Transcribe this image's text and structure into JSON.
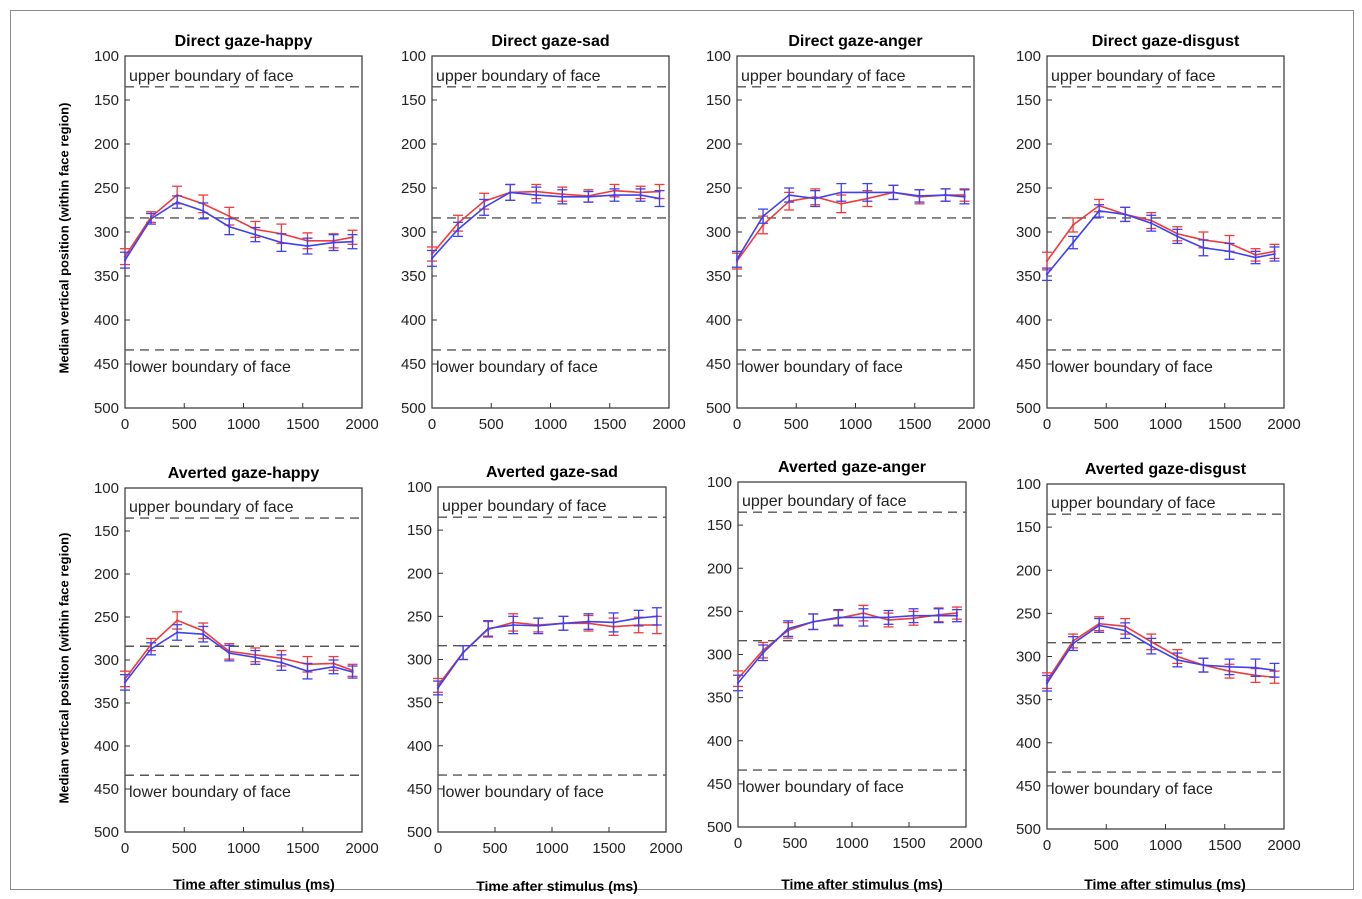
{
  "figure": {
    "y_axis_label": "Median vertical position (within face region)",
    "x_axis_label": "Time after stimulus (ms)",
    "upper_boundary_label": "upper boundary of face",
    "lower_boundary_label": "lower boundary of face",
    "colors": {
      "red": "#ee3b3b",
      "blue": "#4040ee",
      "boundary": "#555555",
      "axis": "#333333"
    }
  },
  "chart_data": [
    {
      "type": "line",
      "title": "Direct gaze-happy",
      "x": [
        0,
        220,
        440,
        660,
        880,
        1100,
        1320,
        1540,
        1760,
        1920
      ],
      "xlim": [
        0,
        2000
      ],
      "xticks": [
        0,
        500,
        1000,
        1500,
        2000
      ],
      "ylim": [
        100,
        500
      ],
      "y_reversed": true,
      "yticks": [
        100,
        150,
        200,
        250,
        300,
        350,
        400,
        450,
        500
      ],
      "reference_lines": [
        {
          "y": 135,
          "label": "upper boundary of face"
        },
        {
          "y": 284,
          "label": ""
        },
        {
          "y": 434,
          "label": "lower boundary of face"
        }
      ],
      "series": [
        {
          "color": "#ee3b3b",
          "values": [
            328,
            283,
            258,
            268,
            282,
            297,
            302,
            310,
            310,
            306
          ],
          "errors": [
            9,
            6,
            10,
            10,
            10,
            9,
            11,
            9,
            8,
            8
          ]
        },
        {
          "color": "#4040ee",
          "values": [
            332,
            285,
            266,
            276,
            294,
            303,
            312,
            316,
            312,
            311
          ],
          "errors": [
            9,
            6,
            7,
            9,
            9,
            8,
            10,
            9,
            9,
            8
          ]
        }
      ]
    },
    {
      "type": "line",
      "title": "Direct gaze-sad",
      "x": [
        0,
        220,
        440,
        660,
        880,
        1100,
        1320,
        1540,
        1760,
        1920
      ],
      "xlim": [
        0,
        2000
      ],
      "xticks": [
        0,
        500,
        1000,
        1500,
        2000
      ],
      "ylim": [
        100,
        500
      ],
      "y_reversed": true,
      "yticks": [
        100,
        150,
        200,
        250,
        300,
        350,
        400,
        450,
        500
      ],
      "reference_lines": [
        {
          "y": 135,
          "label": "upper boundary of face"
        },
        {
          "y": 284,
          "label": ""
        },
        {
          "y": 434,
          "label": "lower boundary of face"
        }
      ],
      "series": [
        {
          "color": "#ee3b3b",
          "values": [
            325,
            290,
            265,
            255,
            254,
            257,
            259,
            253,
            255,
            254
          ],
          "errors": [
            8,
            9,
            9,
            9,
            8,
            8,
            7,
            7,
            7,
            8
          ]
        },
        {
          "color": "#4040ee",
          "values": [
            330,
            297,
            272,
            255,
            258,
            260,
            260,
            258,
            258,
            262
          ],
          "errors": [
            9,
            8,
            9,
            9,
            9,
            8,
            6,
            7,
            7,
            9
          ]
        }
      ]
    },
    {
      "type": "line",
      "title": "Direct gaze-anger",
      "x": [
        0,
        220,
        440,
        660,
        880,
        1100,
        1320,
        1540,
        1760,
        1920
      ],
      "xlim": [
        0,
        2000
      ],
      "xticks": [
        0,
        500,
        1000,
        1500,
        2000
      ],
      "ylim": [
        100,
        500
      ],
      "y_reversed": true,
      "yticks": [
        100,
        150,
        200,
        250,
        300,
        350,
        400,
        450,
        500
      ],
      "reference_lines": [
        {
          "y": 135,
          "label": "upper boundary of face"
        },
        {
          "y": 284,
          "label": ""
        },
        {
          "y": 434,
          "label": "lower boundary of face"
        }
      ],
      "series": [
        {
          "color": "#ee3b3b",
          "values": [
            333,
            292,
            265,
            260,
            268,
            262,
            255,
            260,
            258,
            258
          ],
          "errors": [
            9,
            10,
            10,
            9,
            10,
            9,
            8,
            8,
            7,
            7
          ]
        },
        {
          "color": "#4040ee",
          "values": [
            331,
            282,
            258,
            262,
            255,
            255,
            255,
            259,
            258,
            260
          ],
          "errors": [
            9,
            8,
            8,
            9,
            10,
            10,
            8,
            7,
            7,
            8
          ]
        }
      ]
    },
    {
      "type": "line",
      "title": "Direct gaze-disgust",
      "x": [
        0,
        220,
        440,
        660,
        880,
        1100,
        1320,
        1540,
        1760,
        1920
      ],
      "xlim": [
        0,
        2000
      ],
      "xticks": [
        0,
        500,
        1000,
        1500,
        2000
      ],
      "ylim": [
        100,
        500
      ],
      "y_reversed": true,
      "yticks": [
        100,
        150,
        200,
        250,
        300,
        350,
        400,
        450,
        500
      ],
      "reference_lines": [
        {
          "y": 135,
          "label": "upper boundary of face"
        },
        {
          "y": 284,
          "label": ""
        },
        {
          "y": 434,
          "label": "lower boundary of face"
        }
      ],
      "series": [
        {
          "color": "#ee3b3b",
          "values": [
            333,
            292,
            270,
            280,
            287,
            302,
            309,
            313,
            326,
            322
          ],
          "errors": [
            10,
            8,
            7,
            8,
            9,
            8,
            9,
            9,
            7,
            8
          ]
        },
        {
          "color": "#4040ee",
          "values": [
            348,
            312,
            276,
            280,
            290,
            305,
            318,
            322,
            329,
            325
          ],
          "errors": [
            7,
            7,
            7,
            8,
            9,
            8,
            9,
            9,
            7,
            8
          ]
        }
      ]
    },
    {
      "type": "line",
      "title": "Averted gaze-happy",
      "x": [
        0,
        220,
        440,
        660,
        880,
        1100,
        1320,
        1540,
        1760,
        1920
      ],
      "xlim": [
        0,
        2000
      ],
      "xticks": [
        0,
        500,
        1000,
        1500,
        2000
      ],
      "ylim": [
        100,
        500
      ],
      "y_reversed": true,
      "yticks": [
        100,
        150,
        200,
        250,
        300,
        350,
        400,
        450,
        500
      ],
      "reference_lines": [
        {
          "y": 135,
          "label": "upper boundary of face"
        },
        {
          "y": 284,
          "label": ""
        },
        {
          "y": 434,
          "label": "lower boundary of face"
        }
      ],
      "series": [
        {
          "color": "#ee3b3b",
          "values": [
            322,
            282,
            254,
            266,
            290,
            294,
            298,
            305,
            304,
            312
          ],
          "errors": [
            9,
            7,
            10,
            9,
            9,
            8,
            9,
            9,
            8,
            7
          ]
        },
        {
          "color": "#4040ee",
          "values": [
            326,
            287,
            268,
            270,
            292,
            297,
            303,
            313,
            308,
            314
          ],
          "errors": [
            9,
            7,
            9,
            9,
            9,
            8,
            9,
            9,
            8,
            7
          ]
        }
      ]
    },
    {
      "type": "line",
      "title": "Averted gaze-sad",
      "x": [
        0,
        220,
        440,
        660,
        880,
        1100,
        1320,
        1540,
        1760,
        1920
      ],
      "xlim": [
        0,
        2000
      ],
      "xticks": [
        0,
        500,
        1000,
        1500,
        2000
      ],
      "ylim": [
        100,
        500
      ],
      "y_reversed": true,
      "yticks": [
        100,
        150,
        200,
        250,
        300,
        350,
        400,
        450,
        500
      ],
      "reference_lines": [
        {
          "y": 135,
          "label": "upper boundary of face"
        },
        {
          "y": 284,
          "label": ""
        },
        {
          "y": 434,
          "label": "lower boundary of face"
        }
      ],
      "series": [
        {
          "color": "#ee3b3b",
          "values": [
            330,
            292,
            265,
            257,
            260,
            258,
            258,
            262,
            260,
            260
          ],
          "errors": [
            8,
            8,
            9,
            10,
            8,
            8,
            9,
            10,
            9,
            10
          ]
        },
        {
          "color": "#4040ee",
          "values": [
            333,
            292,
            264,
            260,
            261,
            258,
            256,
            257,
            252,
            250
          ],
          "errors": [
            8,
            8,
            9,
            10,
            9,
            8,
            9,
            11,
            9,
            10
          ]
        }
      ]
    },
    {
      "type": "line",
      "title": "Averted gaze-anger",
      "x": [
        0,
        220,
        440,
        660,
        880,
        1100,
        1320,
        1540,
        1760,
        1920
      ],
      "xlim": [
        0,
        2000
      ],
      "xticks": [
        0,
        500,
        1000,
        1500,
        2000
      ],
      "ylim": [
        100,
        500
      ],
      "y_reversed": true,
      "yticks": [
        100,
        150,
        200,
        250,
        300,
        350,
        400,
        450,
        500
      ],
      "reference_lines": [
        {
          "y": 135,
          "label": "upper boundary of face"
        },
        {
          "y": 284,
          "label": ""
        },
        {
          "y": 434,
          "label": "lower boundary of face"
        }
      ],
      "series": [
        {
          "color": "#ee3b3b",
          "values": [
            328,
            295,
            272,
            262,
            258,
            252,
            260,
            258,
            254,
            252
          ],
          "errors": [
            9,
            9,
            9,
            9,
            9,
            9,
            8,
            8,
            8,
            7
          ]
        },
        {
          "color": "#4040ee",
          "values": [
            333,
            298,
            270,
            262,
            257,
            257,
            257,
            255,
            255,
            255
          ],
          "errors": [
            9,
            9,
            9,
            9,
            9,
            10,
            8,
            8,
            8,
            7
          ]
        }
      ]
    },
    {
      "type": "line",
      "title": "Averted gaze-disgust",
      "x": [
        0,
        220,
        440,
        660,
        880,
        1100,
        1320,
        1540,
        1760,
        1920
      ],
      "xlim": [
        0,
        2000
      ],
      "xticks": [
        0,
        500,
        1000,
        1500,
        2000
      ],
      "ylim": [
        100,
        500
      ],
      "y_reversed": true,
      "yticks": [
        100,
        150,
        200,
        250,
        300,
        350,
        400,
        450,
        500
      ],
      "reference_lines": [
        {
          "y": 135,
          "label": "upper boundary of face"
        },
        {
          "y": 284,
          "label": ""
        },
        {
          "y": 434,
          "label": "lower boundary of face"
        }
      ],
      "series": [
        {
          "color": "#ee3b3b",
          "values": [
            328,
            282,
            262,
            265,
            283,
            300,
            310,
            317,
            322,
            324
          ],
          "errors": [
            9,
            8,
            8,
            9,
            9,
            8,
            8,
            8,
            8,
            7
          ]
        },
        {
          "color": "#4040ee",
          "values": [
            331,
            285,
            264,
            270,
            288,
            304,
            310,
            312,
            313,
            316
          ],
          "errors": [
            9,
            8,
            8,
            9,
            9,
            8,
            8,
            9,
            10,
            8
          ]
        }
      ]
    }
  ]
}
